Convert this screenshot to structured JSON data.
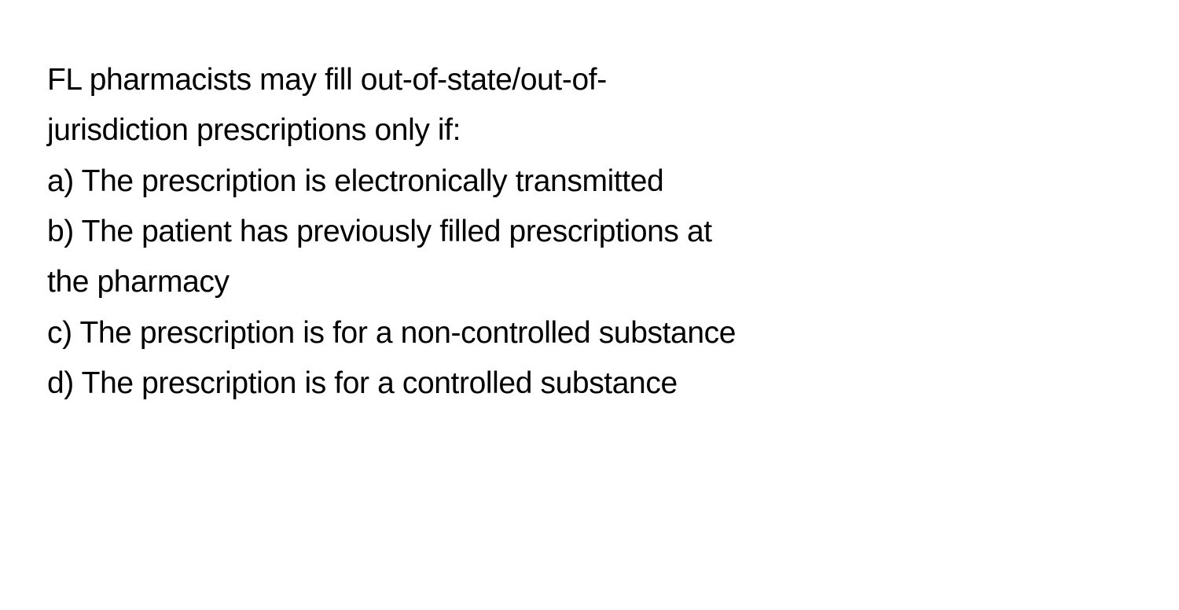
{
  "question": {
    "stem_line1": "FL pharmacists may fill out-of-state/out-of-",
    "stem_line2": "jurisdiction prescriptions only if:",
    "options": {
      "a": "a) The prescription is electronically transmitted",
      "b_line1": "b) The patient has previously filled prescriptions at",
      "b_line2": "the pharmacy",
      "c": "c) The prescription is for a non-controlled substance",
      "d": "d) The prescription is for a controlled substance"
    }
  },
  "styling": {
    "background_color": "#ffffff",
    "text_color": "#000000",
    "font_size": 39,
    "line_height": 1.65
  }
}
